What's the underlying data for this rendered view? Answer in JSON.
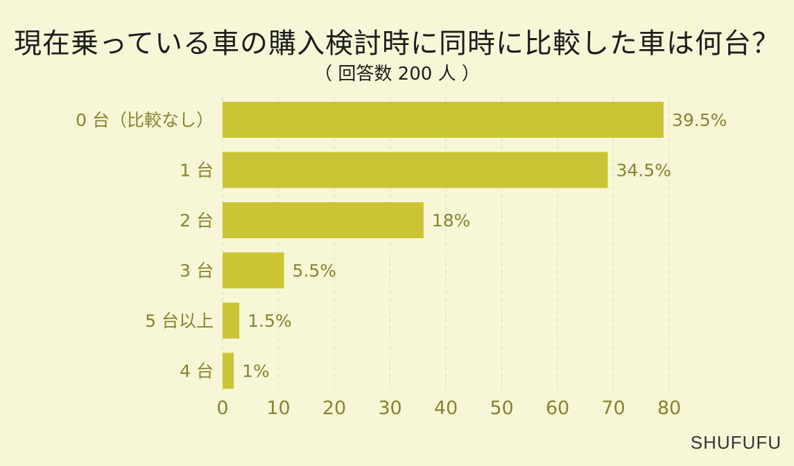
{
  "chart_data": {
    "type": "bar",
    "orientation": "horizontal",
    "title": "現在乗っている車の購入検討時に同時に比較した車は何台？",
    "subtitle": "（ 回答数 200 人 ）",
    "categories": [
      "0 台（比較なし）",
      "1 台",
      "2 台",
      "3 台",
      "5 台以上",
      "4 台"
    ],
    "values": [
      79,
      69,
      36,
      11,
      3,
      2
    ],
    "value_labels": [
      "39.5%",
      "34.5%",
      "18%",
      "5.5%",
      "1.5%",
      "1%"
    ],
    "xticks": [
      "0",
      "10",
      "20",
      "30",
      "40",
      "50",
      "60",
      "70",
      "80"
    ],
    "xlim": [
      0,
      80
    ],
    "grid": true,
    "colors": {
      "bar": "#cbc535",
      "background": "#f7f7d7",
      "label": "#86842f"
    }
  },
  "source": "SHUFUFU"
}
